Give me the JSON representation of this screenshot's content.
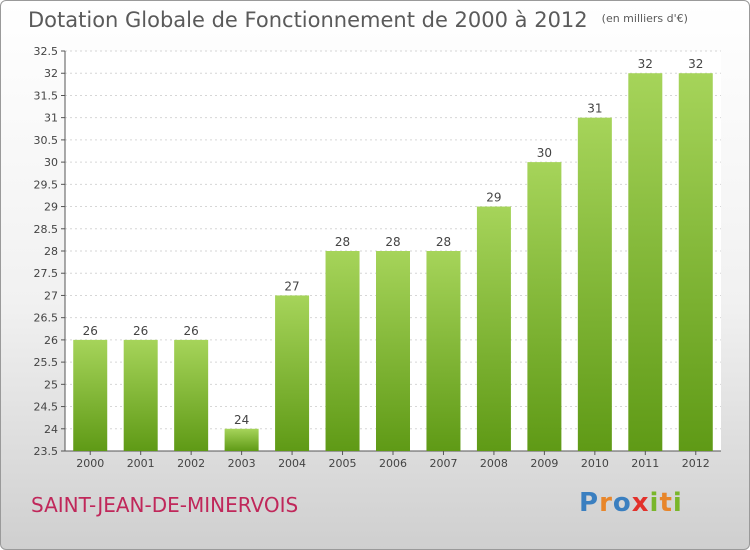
{
  "title": "Dotation Globale de Fonctionnement de 2000 à 2012",
  "unit": "(en milliers d'€)",
  "commune": "SAINT-JEAN-DE-MINERVOIS",
  "brand": {
    "letters": [
      "P",
      "r",
      "o",
      "x",
      "i",
      "t",
      "i"
    ],
    "colors": [
      "#3a7fc0",
      "#e8862a",
      "#3a7fc0",
      "#e2312b",
      "#79b62a",
      "#e8862a",
      "#79b62a"
    ]
  },
  "colors": {
    "bar_top": "#a6d45a",
    "bar_bottom": "#5f9a16",
    "commune": "#c0275a",
    "text": "#5a5a5a"
  },
  "chart_data": {
    "type": "bar",
    "categories": [
      "2000",
      "2001",
      "2002",
      "2003",
      "2004",
      "2005",
      "2006",
      "2007",
      "2008",
      "2009",
      "2010",
      "2011",
      "2012"
    ],
    "values": [
      26,
      26,
      26,
      24,
      27,
      28,
      28,
      28,
      29,
      30,
      31,
      32,
      32
    ],
    "ylim": [
      23.5,
      32.5
    ],
    "yticks": [
      "23.5",
      "24",
      "24.5",
      "25",
      "25.5",
      "26",
      "26.5",
      "27",
      "27.5",
      "28",
      "28.5",
      "29",
      "29.5",
      "30",
      "30.5",
      "31",
      "31.5",
      "32",
      "32.5"
    ],
    "grid": true
  }
}
